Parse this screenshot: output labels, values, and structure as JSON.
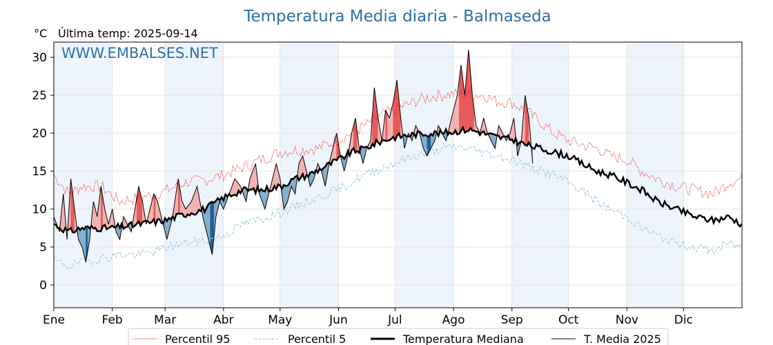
{
  "chart_data": {
    "type": "line",
    "title": "Temperatura Media diaria - Balmaseda",
    "ylabel": "°C",
    "subtitle": "Última temp: 2025-09-14",
    "watermark": "WWW.EMBALSES.NET",
    "ylim": [
      -3,
      32
    ],
    "xlim": [
      0,
      365
    ],
    "yticks": [
      0,
      5,
      10,
      15,
      20,
      25,
      30
    ],
    "months": [
      {
        "label": "Ene",
        "day": 0
      },
      {
        "label": "Feb",
        "day": 31
      },
      {
        "label": "Mar",
        "day": 59
      },
      {
        "label": "Abr",
        "day": 90
      },
      {
        "label": "May",
        "day": 120
      },
      {
        "label": "Jun",
        "day": 151
      },
      {
        "label": "Jul",
        "day": 181
      },
      {
        "label": "Ago",
        "day": 212
      },
      {
        "label": "Sep",
        "day": 243
      },
      {
        "label": "Oct",
        "day": 273
      },
      {
        "label": "Nov",
        "day": 304
      },
      {
        "label": "Dic",
        "day": 334
      }
    ],
    "shaded_months": [
      "Ene",
      "Mar",
      "May",
      "Jul",
      "Sep",
      "Nov"
    ],
    "grid": true,
    "legend_position": "bottom",
    "colors": {
      "p95": "#e8191b",
      "p5": "#9fcde0",
      "median": "#000000",
      "current": "#000000",
      "above_fill": "#f4b3b3",
      "above_fill_strong": "#e85a5a",
      "below_fill": "#86aecd",
      "below_fill_strong": "#1f5f95",
      "month_band": "#eef4fb"
    },
    "series": [
      {
        "name": "Percentil 95",
        "style": "dotted-red",
        "key": "p95",
        "anchors": [
          [
            0,
            14.5
          ],
          [
            8,
            12
          ],
          [
            15,
            13
          ],
          [
            25,
            13
          ],
          [
            35,
            11
          ],
          [
            45,
            11.5
          ],
          [
            55,
            12
          ],
          [
            60,
            12.5
          ],
          [
            70,
            13.5
          ],
          [
            80,
            13.8
          ],
          [
            90,
            14.5
          ],
          [
            100,
            15.5
          ],
          [
            110,
            16.5
          ],
          [
            120,
            17.5
          ],
          [
            130,
            17.8
          ],
          [
            140,
            18
          ],
          [
            150,
            19
          ],
          [
            158,
            20
          ],
          [
            165,
            21
          ],
          [
            175,
            22.5
          ],
          [
            185,
            23.5
          ],
          [
            195,
            24.5
          ],
          [
            205,
            25
          ],
          [
            212,
            25.2
          ],
          [
            220,
            25
          ],
          [
            228,
            25
          ],
          [
            235,
            24.2
          ],
          [
            243,
            24
          ],
          [
            250,
            23
          ],
          [
            258,
            21.5
          ],
          [
            265,
            20
          ],
          [
            273,
            19
          ],
          [
            280,
            18.5
          ],
          [
            288,
            18
          ],
          [
            295,
            17
          ],
          [
            304,
            16.5
          ],
          [
            312,
            15
          ],
          [
            320,
            14
          ],
          [
            330,
            13
          ],
          [
            340,
            12.5
          ],
          [
            350,
            12
          ],
          [
            358,
            13.5
          ],
          [
            365,
            14
          ]
        ]
      },
      {
        "name": "Percentil 5",
        "style": "dashed-lightblue",
        "key": "p5",
        "anchors": [
          [
            0,
            3.2
          ],
          [
            8,
            2.5
          ],
          [
            15,
            3
          ],
          [
            25,
            3.5
          ],
          [
            35,
            4
          ],
          [
            45,
            4
          ],
          [
            55,
            4.5
          ],
          [
            60,
            5
          ],
          [
            70,
            5.5
          ],
          [
            80,
            5.8
          ],
          [
            90,
            6.5
          ],
          [
            100,
            8
          ],
          [
            110,
            8.7
          ],
          [
            120,
            9.5
          ],
          [
            130,
            10.5
          ],
          [
            140,
            11.5
          ],
          [
            150,
            12.5
          ],
          [
            158,
            13.5
          ],
          [
            165,
            14.5
          ],
          [
            175,
            15.5
          ],
          [
            185,
            16.5
          ],
          [
            195,
            17.2
          ],
          [
            205,
            17.8
          ],
          [
            212,
            18.2
          ],
          [
            220,
            18
          ],
          [
            228,
            17.5
          ],
          [
            235,
            17
          ],
          [
            243,
            16.5
          ],
          [
            250,
            15.8
          ],
          [
            258,
            15
          ],
          [
            265,
            14.5
          ],
          [
            273,
            13.5
          ],
          [
            280,
            12.5
          ],
          [
            288,
            11
          ],
          [
            295,
            10
          ],
          [
            304,
            9
          ],
          [
            312,
            7.5
          ],
          [
            320,
            6.5
          ],
          [
            330,
            5.5
          ],
          [
            340,
            5
          ],
          [
            350,
            4.5
          ],
          [
            358,
            5.5
          ],
          [
            365,
            5
          ]
        ]
      },
      {
        "name": "Temperatura Mediana",
        "style": "thick-black",
        "key": "median",
        "anchors": [
          [
            0,
            8
          ],
          [
            8,
            7
          ],
          [
            15,
            7.5
          ],
          [
            22,
            7.5
          ],
          [
            30,
            7.5
          ],
          [
            40,
            7.8
          ],
          [
            50,
            8.2
          ],
          [
            59,
            8.5
          ],
          [
            65,
            9
          ],
          [
            72,
            9.5
          ],
          [
            80,
            10
          ],
          [
            90,
            11.5
          ],
          [
            100,
            12.5
          ],
          [
            110,
            12.5
          ],
          [
            120,
            13
          ],
          [
            128,
            14
          ],
          [
            135,
            14.5
          ],
          [
            143,
            15.5
          ],
          [
            151,
            16.5
          ],
          [
            158,
            17.5
          ],
          [
            165,
            18
          ],
          [
            172,
            18.8
          ],
          [
            181,
            19.5
          ],
          [
            190,
            19.8
          ],
          [
            198,
            20
          ],
          [
            205,
            20
          ],
          [
            212,
            20.2
          ],
          [
            220,
            20.5
          ],
          [
            228,
            20
          ],
          [
            235,
            19.5
          ],
          [
            243,
            19.2
          ],
          [
            250,
            18.5
          ],
          [
            258,
            18
          ],
          [
            265,
            17.5
          ],
          [
            273,
            17
          ],
          [
            280,
            16
          ],
          [
            288,
            15
          ],
          [
            295,
            14.5
          ],
          [
            304,
            13.5
          ],
          [
            312,
            12.5
          ],
          [
            320,
            11
          ],
          [
            330,
            10
          ],
          [
            340,
            9
          ],
          [
            350,
            8.5
          ],
          [
            358,
            9
          ],
          [
            365,
            8
          ]
        ]
      },
      {
        "name": "T. Media 2025",
        "style": "thin-black",
        "key": "current",
        "anchors": [
          [
            0,
            9
          ],
          [
            3,
            7
          ],
          [
            5,
            12
          ],
          [
            7,
            6
          ],
          [
            9,
            14
          ],
          [
            11,
            10
          ],
          [
            13,
            6
          ],
          [
            15,
            5
          ],
          [
            17,
            3
          ],
          [
            19,
            6
          ],
          [
            21,
            11
          ],
          [
            23,
            9
          ],
          [
            25,
            13
          ],
          [
            27,
            10
          ],
          [
            29,
            8
          ],
          [
            31,
            10
          ],
          [
            33,
            7
          ],
          [
            35,
            6
          ],
          [
            37,
            9
          ],
          [
            39,
            8
          ],
          [
            41,
            7
          ],
          [
            43,
            10
          ],
          [
            45,
            13
          ],
          [
            47,
            11
          ],
          [
            49,
            8
          ],
          [
            51,
            10
          ],
          [
            53,
            12
          ],
          [
            55,
            11
          ],
          [
            57,
            9
          ],
          [
            60,
            6
          ],
          [
            63,
            9
          ],
          [
            66,
            14
          ],
          [
            68,
            11
          ],
          [
            70,
            10
          ],
          [
            73,
            11
          ],
          [
            76,
            13
          ],
          [
            79,
            9
          ],
          [
            82,
            6
          ],
          [
            84,
            4
          ],
          [
            86,
            9
          ],
          [
            88,
            11
          ],
          [
            90,
            10
          ],
          [
            93,
            12
          ],
          [
            96,
            14
          ],
          [
            99,
            13
          ],
          [
            102,
            11
          ],
          [
            104,
            14
          ],
          [
            107,
            16
          ],
          [
            109,
            12
          ],
          [
            112,
            10
          ],
          [
            115,
            13
          ],
          [
            118,
            16
          ],
          [
            120,
            14
          ],
          [
            122,
            10
          ],
          [
            124,
            11
          ],
          [
            126,
            13
          ],
          [
            128,
            12
          ],
          [
            130,
            16
          ],
          [
            132,
            17
          ],
          [
            134,
            15
          ],
          [
            136,
            13
          ],
          [
            138,
            14
          ],
          [
            140,
            16
          ],
          [
            142,
            15
          ],
          [
            144,
            13
          ],
          [
            146,
            16
          ],
          [
            148,
            18
          ],
          [
            150,
            20
          ],
          [
            152,
            17
          ],
          [
            154,
            15
          ],
          [
            156,
            17
          ],
          [
            158,
            20
          ],
          [
            160,
            22
          ],
          [
            162,
            18
          ],
          [
            164,
            16
          ],
          [
            166,
            18
          ],
          [
            168,
            19
          ],
          [
            170,
            26
          ],
          [
            172,
            22
          ],
          [
            174,
            19
          ],
          [
            176,
            23
          ],
          [
            178,
            22
          ],
          [
            180,
            24
          ],
          [
            182,
            27
          ],
          [
            184,
            22
          ],
          [
            186,
            18
          ],
          [
            188,
            20
          ],
          [
            190,
            19
          ],
          [
            192,
            21
          ],
          [
            194,
            20
          ],
          [
            196,
            18
          ],
          [
            198,
            17
          ],
          [
            200,
            18
          ],
          [
            202,
            19
          ],
          [
            204,
            21
          ],
          [
            206,
            20
          ],
          [
            208,
            19
          ],
          [
            210,
            21
          ],
          [
            212,
            23
          ],
          [
            214,
            25
          ],
          [
            216,
            29
          ],
          [
            218,
            25
          ],
          [
            220,
            31
          ],
          [
            222,
            25
          ],
          [
            224,
            21
          ],
          [
            226,
            20
          ],
          [
            228,
            22
          ],
          [
            230,
            20
          ],
          [
            232,
            19
          ],
          [
            234,
            18
          ],
          [
            236,
            21
          ],
          [
            238,
            20
          ],
          [
            240,
            19
          ],
          [
            242,
            20
          ],
          [
            244,
            22
          ],
          [
            246,
            17
          ],
          [
            248,
            19
          ],
          [
            250,
            25
          ],
          [
            252,
            22
          ],
          [
            254,
            16
          ]
        ]
      }
    ],
    "legend": [
      "Percentil 95",
      "Percentil 5",
      "Temperatura Mediana",
      "T. Media 2025"
    ]
  }
}
